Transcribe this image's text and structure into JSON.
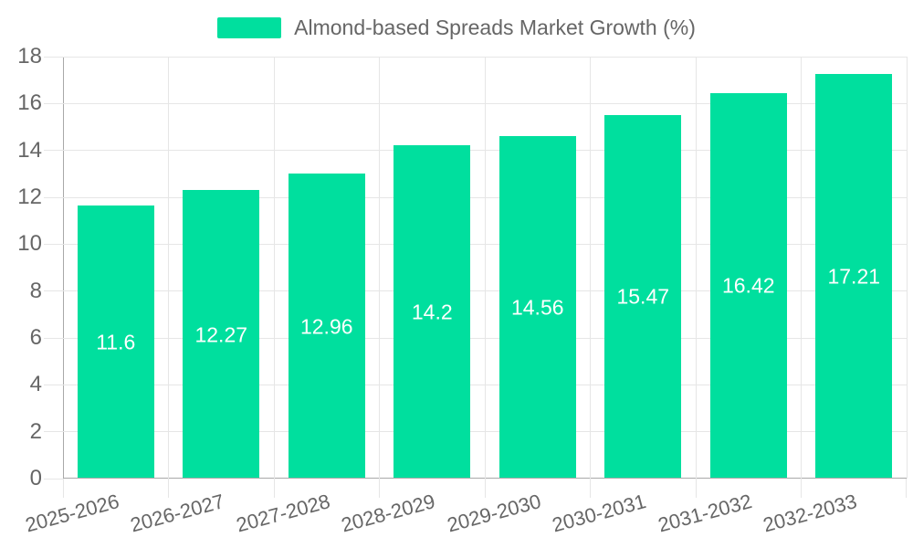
{
  "chart_data": {
    "type": "bar",
    "title": "",
    "legend": {
      "position": "top",
      "label": "Almond-based Spreads Market Growth (%)"
    },
    "categories": [
      "2025-2026",
      "2026-2027",
      "2027-2028",
      "2028-2029",
      "2029-2030",
      "2030-2031",
      "2031-2032",
      "2032-2033"
    ],
    "values": [
      11.6,
      12.27,
      12.96,
      14.2,
      14.56,
      15.47,
      16.42,
      17.21
    ],
    "value_labels": [
      "11.6",
      "12.27",
      "12.96",
      "14.2",
      "14.56",
      "15.47",
      "16.42",
      "17.21"
    ],
    "ylim": [
      0,
      18
    ],
    "yticks": [
      0,
      2,
      4,
      6,
      8,
      10,
      12,
      14,
      16,
      18
    ],
    "ytick_labels": [
      "0",
      "2",
      "4",
      "6",
      "8",
      "10",
      "12",
      "14",
      "16",
      "18"
    ],
    "grid": true,
    "x_label_rotation_deg": -15,
    "xlabel": "",
    "ylabel": "",
    "colors": {
      "bar": "#00DF9E",
      "grid": "#e6e6e6",
      "axis": "#a8a8a8",
      "tick_text": "#666666",
      "legend_text": "#666666",
      "data_label_text": "#ffffff",
      "background": "#ffffff"
    }
  }
}
